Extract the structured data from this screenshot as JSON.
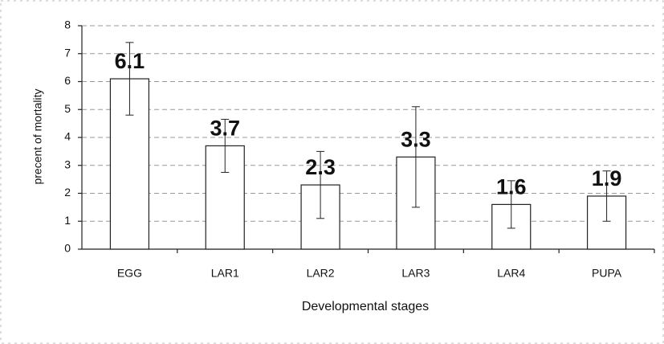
{
  "chart_data": {
    "type": "bar",
    "y_label": "precent of mortality",
    "x_label": "Developmental stages",
    "categories": [
      "EGG",
      "LAR1",
      "LAR2",
      "LAR3",
      "LAR4",
      "PUPA"
    ],
    "values": [
      6.1,
      3.7,
      2.3,
      3.3,
      1.6,
      1.9
    ],
    "errors": [
      1.3,
      0.95,
      1.2,
      1.8,
      0.85,
      0.9
    ],
    "color": "#ffffff",
    "ylim": [
      0,
      8
    ],
    "yticks": [
      0,
      1,
      2,
      3,
      4,
      5,
      6,
      7,
      8
    ],
    "grid": true
  }
}
